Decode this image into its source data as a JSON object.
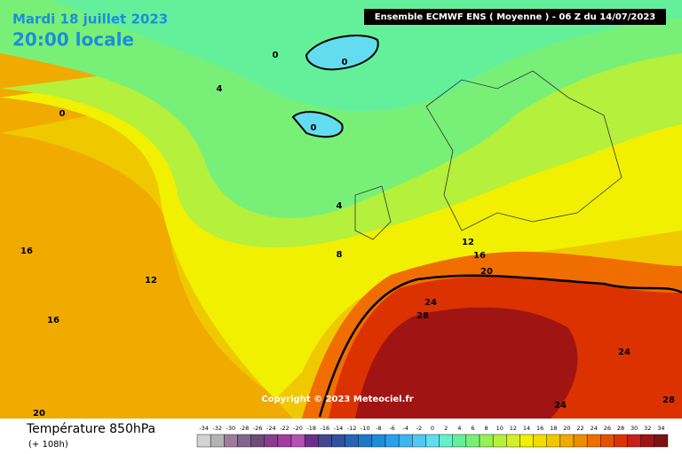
{
  "header": {
    "date": "Mardi 18 juillet 2023",
    "time": "20:00 locale",
    "model": "Ensemble ECMWF ENS  ( Moyenne )  -  06 Z du 14/07/2023"
  },
  "map": {
    "copyright": "Copyright © 2023 Meteociel.fr",
    "contour_labels": [
      "0",
      "0",
      "4",
      "0",
      "0",
      "4",
      "8",
      "12",
      "16",
      "20",
      "24",
      "28",
      "16",
      "12",
      "16",
      "24",
      "24",
      "28",
      "20"
    ]
  },
  "legend": {
    "title": "Température 850hPa",
    "subtitle": "(+ 108h)",
    "ticks": [
      -34,
      -32,
      -30,
      -28,
      -26,
      -24,
      -22,
      -20,
      -18,
      -16,
      -14,
      -12,
      -10,
      -8,
      -6,
      -4,
      -2,
      0,
      2,
      4,
      6,
      8,
      10,
      12,
      14,
      16,
      18,
      20,
      22,
      24,
      26,
      28,
      30,
      32,
      34
    ],
    "colors": [
      "#d2d2d2",
      "#b4b4b4",
      "#9b7d9b",
      "#82648c",
      "#6e4b78",
      "#8c3c8c",
      "#a03ca0",
      "#b450b4",
      "#6e2d8c",
      "#46468c",
      "#3250a0",
      "#2864b4",
      "#1e78c8",
      "#1e8cdc",
      "#28a0f0",
      "#3cb4f0",
      "#50c8f0",
      "#64dcf0",
      "#64f0c8",
      "#64f09b",
      "#78f078",
      "#96f05a",
      "#b4f03c",
      "#d2f028",
      "#f0f000",
      "#f0dc00",
      "#f0c800",
      "#f0aa00",
      "#f08c00",
      "#f06e00",
      "#e65000",
      "#dc3200",
      "#c81e1e",
      "#a01414",
      "#781414"
    ]
  }
}
